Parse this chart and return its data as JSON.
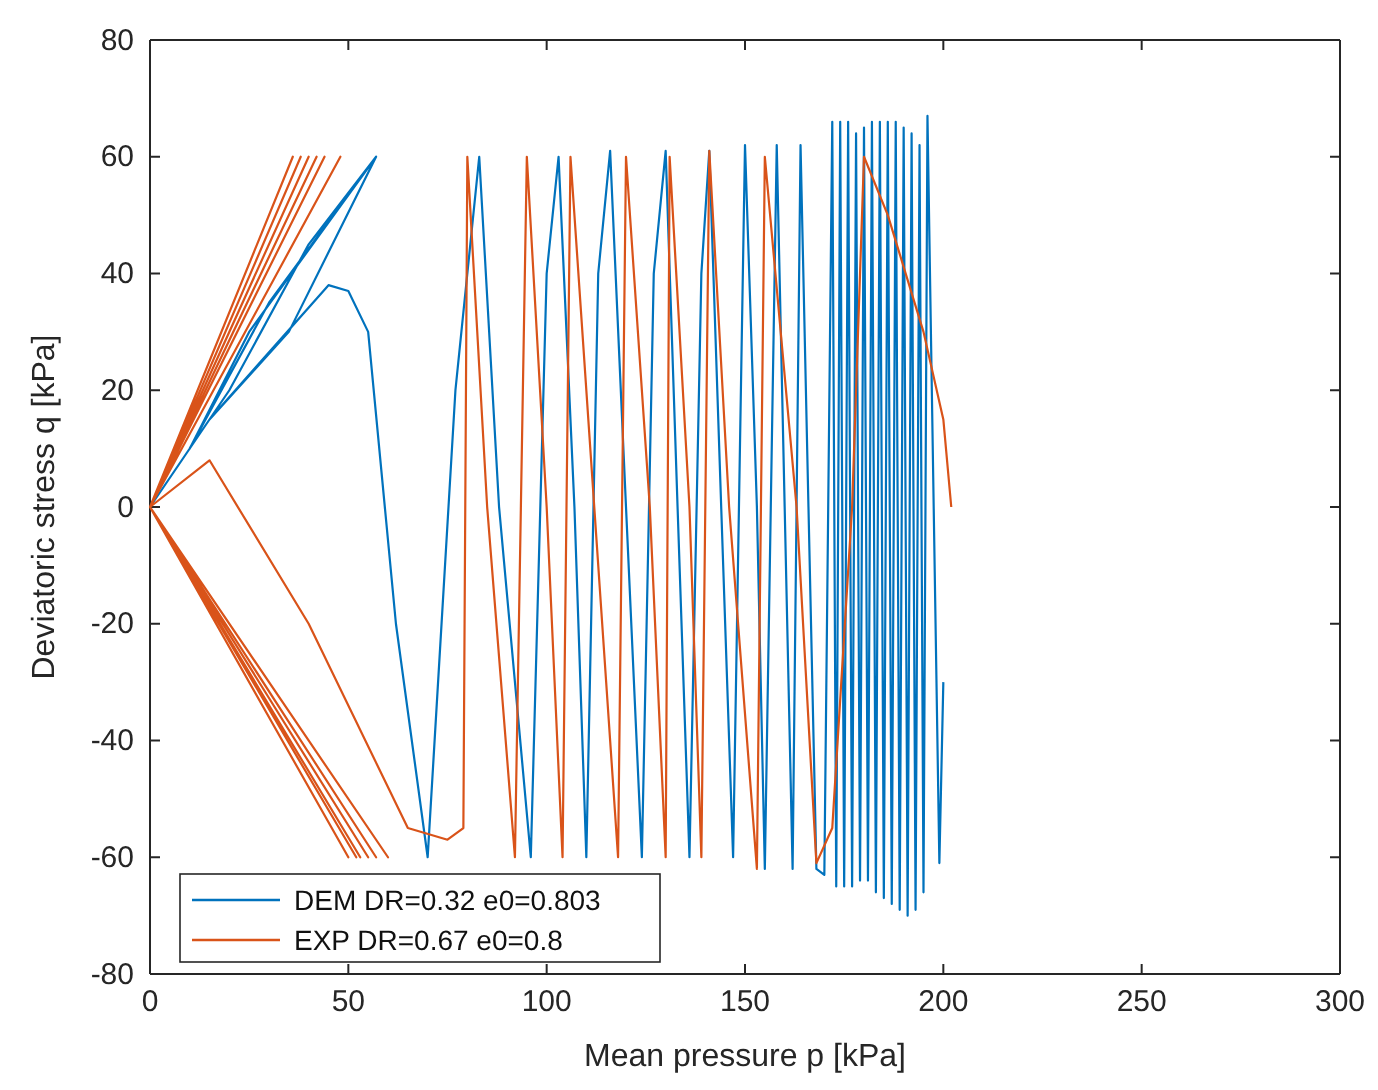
{
  "chart_data": {
    "type": "line",
    "xlabel": "Mean pressure p [kPa]",
    "ylabel": "Deviatoric stress q [kPa]",
    "xlim": [
      0,
      300
    ],
    "xticks": [
      0,
      50,
      100,
      150,
      200,
      250,
      300
    ],
    "ylim": [
      -80,
      80
    ],
    "yticks": [
      -80,
      -60,
      -40,
      -20,
      0,
      20,
      40,
      60,
      80
    ],
    "grid": false,
    "legend": "bottom left",
    "marker": "none",
    "line_style": "solid",
    "series": [
      {
        "name": "DEM DR=0.32 e0=0.803",
        "color": "#0072bd",
        "x": [
          0,
          20,
          40,
          57,
          25,
          10,
          30,
          57,
          35,
          15,
          45,
          50,
          55,
          62,
          70,
          77,
          83,
          88,
          96,
          100,
          103,
          107,
          110,
          113,
          116,
          120,
          124,
          127,
          130,
          133,
          136,
          139,
          141,
          144,
          147,
          150,
          153,
          155,
          158,
          160,
          162,
          164,
          166,
          168,
          170,
          172,
          173,
          174,
          175,
          176,
          177,
          178,
          179,
          180,
          181,
          182,
          183,
          184,
          185,
          186,
          187,
          188,
          189,
          190,
          191,
          192,
          193,
          194,
          195,
          196,
          199,
          200
        ],
        "values": [
          0,
          20,
          45,
          60,
          30,
          10,
          35,
          60,
          30,
          15,
          38,
          37,
          30,
          -20,
          -60,
          20,
          60,
          0,
          -60,
          40,
          60,
          0,
          -60,
          40,
          61,
          0,
          -60,
          40,
          61,
          0,
          -60,
          40,
          61,
          0,
          -60,
          62,
          0,
          -62,
          62,
          0,
          -62,
          62,
          0,
          -62,
          -63,
          66,
          -65,
          66,
          -65,
          66,
          -65,
          64,
          -64,
          65,
          -64,
          66,
          -66,
          66,
          -67,
          66,
          -68,
          66,
          -69,
          65,
          -70,
          64,
          -69,
          62,
          -66,
          67,
          -61,
          -30
        ]
      },
      {
        "name": "EXP DR=0.67 e0=0.8",
        "color": "#d95319",
        "x": [
          0,
          38,
          0,
          50,
          0,
          40,
          0,
          53,
          0,
          42,
          0,
          55,
          0,
          44,
          0,
          57,
          0,
          36,
          0,
          52,
          0,
          48,
          0,
          60,
          0,
          15,
          40,
          65,
          75,
          79,
          80,
          85,
          92,
          95,
          100,
          104,
          106,
          112,
          118,
          120,
          126,
          130,
          131,
          136,
          139,
          141,
          146,
          153,
          155,
          163,
          168,
          172,
          177,
          180,
          186,
          195,
          200,
          202
        ],
        "values": [
          0,
          60,
          0,
          -60,
          0,
          60,
          0,
          -60,
          0,
          60,
          0,
          -60,
          0,
          60,
          0,
          -60,
          0,
          60,
          0,
          -60,
          0,
          60,
          0,
          -60,
          0,
          8,
          -20,
          -55,
          -57,
          -55,
          60,
          0,
          -60,
          60,
          0,
          -60,
          60,
          0,
          -60,
          60,
          0,
          -60,
          60,
          0,
          -60,
          61,
          0,
          -62,
          60,
          0,
          -61,
          -55,
          0,
          60,
          50,
          30,
          15,
          0
        ]
      }
    ]
  }
}
